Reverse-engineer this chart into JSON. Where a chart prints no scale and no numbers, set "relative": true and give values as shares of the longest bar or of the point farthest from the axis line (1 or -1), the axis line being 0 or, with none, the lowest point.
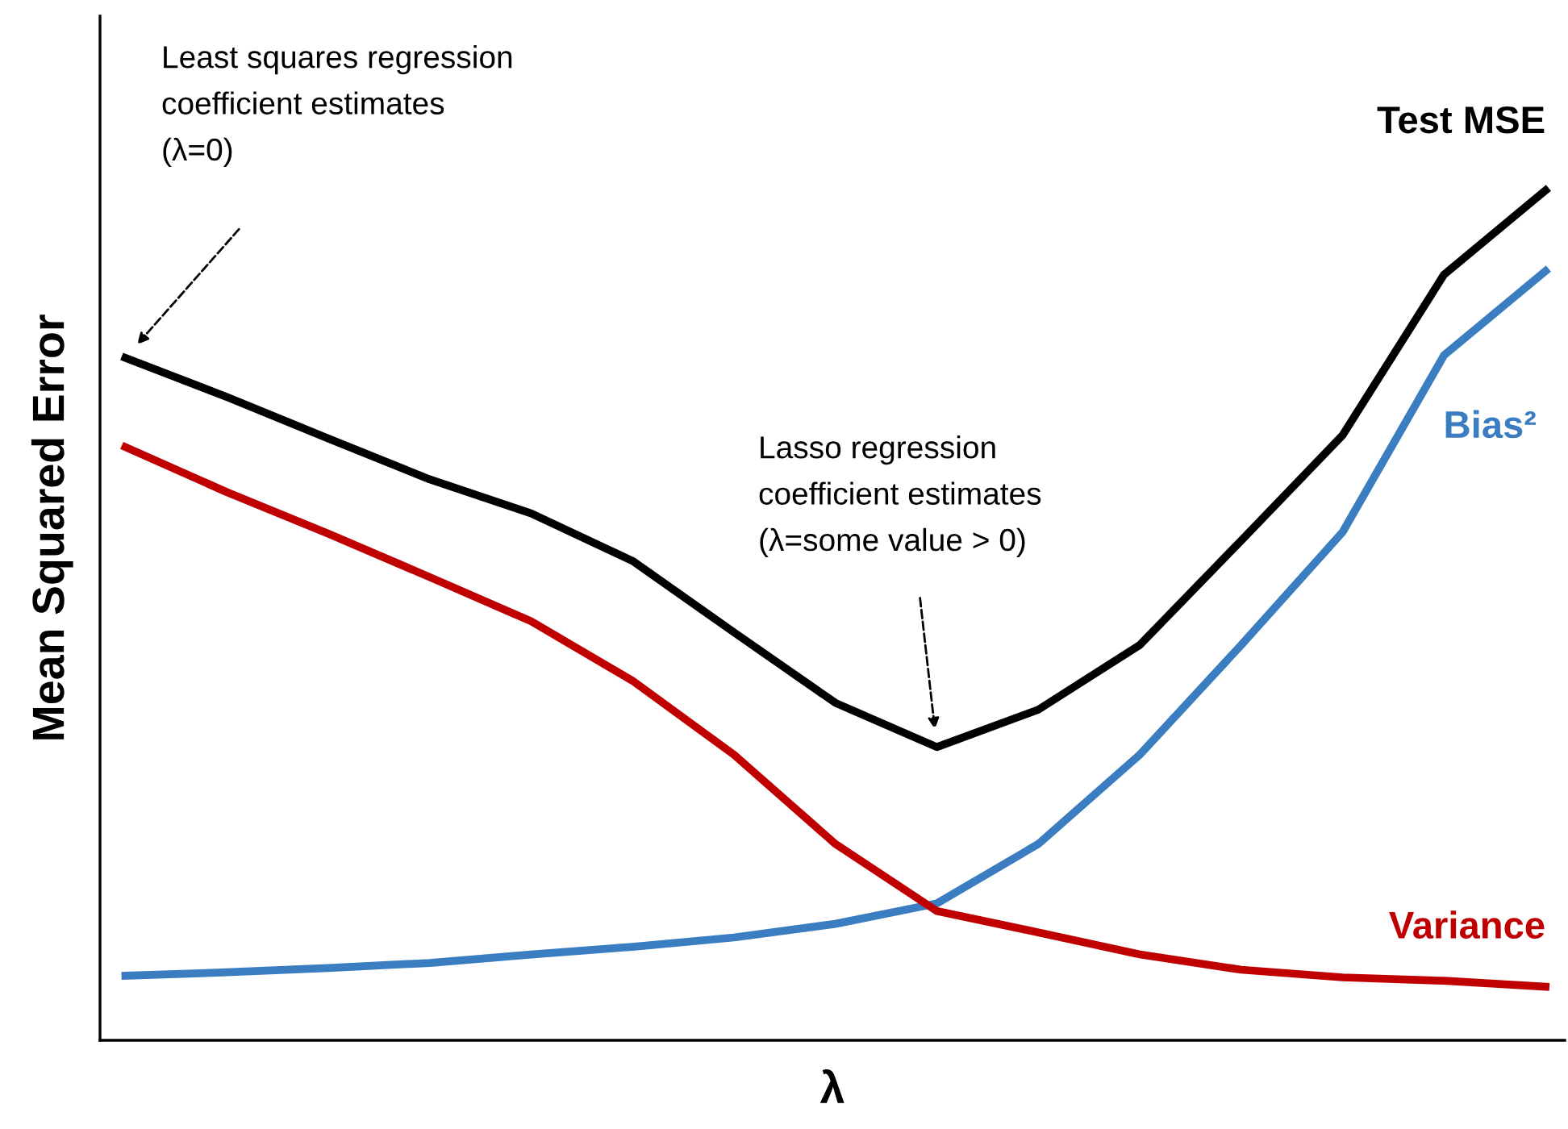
{
  "chart_data": {
    "type": "line",
    "relative": true,
    "xlabel": "λ",
    "ylabel": "Mean Squared Error",
    "grid": false,
    "legend": false,
    "marker": "none",
    "line_style": "solid",
    "categories": [
      null,
      null,
      null,
      null,
      null,
      null,
      null,
      null,
      null,
      null,
      null,
      null,
      null,
      null,
      null
    ],
    "series": [
      {
        "name": "Test MSE",
        "color": "#000000",
        "values": [
          0.803,
          0.757,
          0.708,
          0.66,
          0.62,
          0.564,
          0.48,
          0.397,
          0.345,
          0.389,
          0.465,
          0.588,
          0.712,
          0.901,
          1.0
        ]
      },
      {
        "name": "Bias²",
        "color": "#3a7dc0",
        "values": [
          0.076,
          0.08,
          0.085,
          0.091,
          0.101,
          0.11,
          0.121,
          0.137,
          0.161,
          0.231,
          0.336,
          0.465,
          0.598,
          0.806,
          0.905
        ]
      },
      {
        "name": "Variance",
        "color": "#c00000",
        "values": [
          0.698,
          0.645,
          0.596,
          0.545,
          0.493,
          0.423,
          0.336,
          0.231,
          0.152,
          0.127,
          0.101,
          0.083,
          0.074,
          0.07,
          0.063
        ]
      }
    ],
    "annotations": [
      "Least squares regression\ncoefficient estimates\n(λ=0)",
      "Lasso regression\ncoefficient estimates\n(λ=some value > 0)"
    ]
  }
}
